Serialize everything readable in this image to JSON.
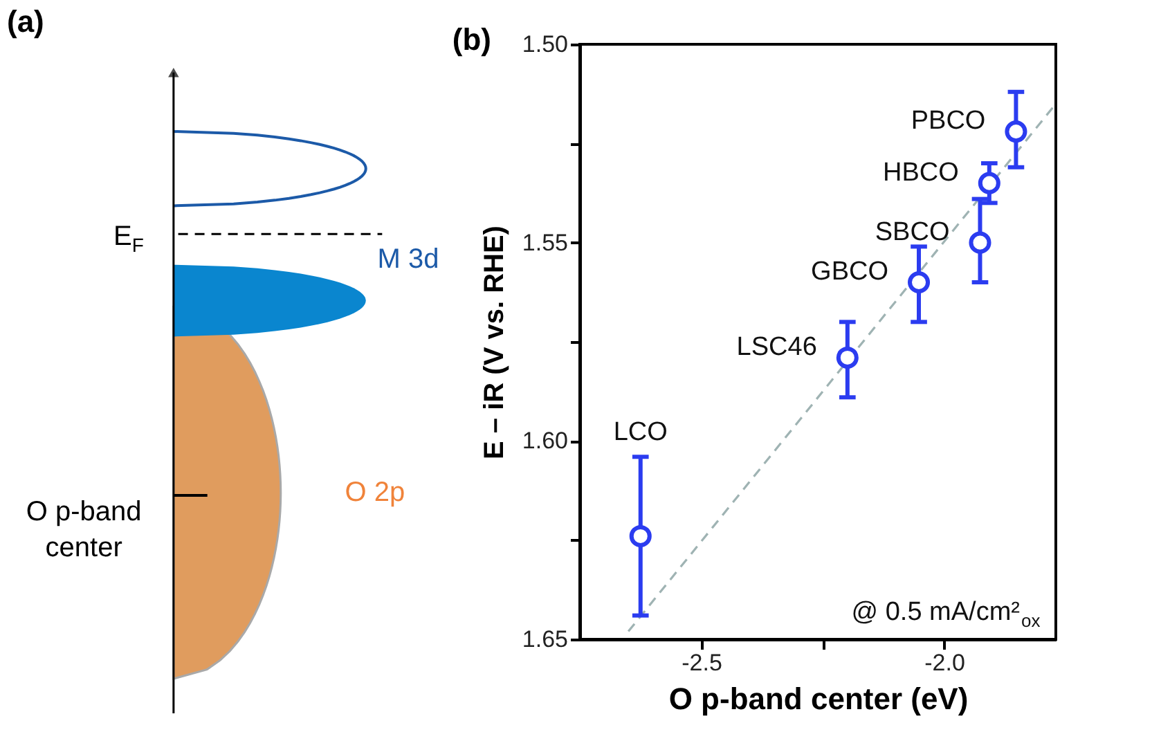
{
  "chart_data": [
    {
      "type": "other",
      "title": "(a)",
      "annotations": [
        "E$_{F}$",
        "M 3d",
        "O 2p",
        "O p-band center"
      ]
    },
    {
      "type": "scatter",
      "title": "(b)",
      "xlabel": "O p-band center (eV)",
      "ylabel": "E – iR (V vs. RHE)",
      "xlim": [
        -2.75,
        -1.77
      ],
      "ylim": [
        1.65,
        1.5
      ],
      "xticks": [
        -2.5,
        {
          "value": -2.25,
          "label": null
        },
        {
          "value": -2,
          "label": "-2.0"
        }
      ],
      "yticks": [
        {
          "value": 1.5,
          "label": "1.50"
        },
        {
          "value": 1.525,
          "label": null
        },
        1.55,
        {
          "value": 1.575,
          "label": null
        },
        {
          "value": 1.6,
          "label": "1.60"
        },
        {
          "value": 1.625,
          "label": null
        },
        1.65
      ],
      "grid": false,
      "marker": "circle",
      "series": [
        {
          "type": "line",
          "color": "#9fb3b3",
          "line_style": "dashed",
          "marker": "none",
          "x": [
            -2.65,
            -1.77
          ],
          "values": [
            1.648,
            1.515
          ]
        },
        {
          "type": "scatter",
          "color": "#2b3cf0",
          "x": [
            -2.625,
            -2.199,
            -2.052,
            -1.926,
            -1.907,
            -1.852
          ],
          "values": [
            1.624,
            1.579,
            1.56,
            1.55,
            1.535,
            1.522
          ],
          "errors": [
            [
              1.604,
              1.644
            ],
            [
              1.57,
              1.589
            ],
            [
              1.551,
              1.57
            ],
            [
              1.539,
              1.56
            ],
            [
              1.53,
              1.54
            ],
            [
              1.512,
              1.531
            ]
          ]
        }
      ],
      "annotations": [
        {
          "text": "LCO",
          "x": -2.625,
          "y": 1.604
        },
        {
          "text": "LSC46",
          "x": -2.199,
          "y": 1.579
        },
        {
          "text": "GBCO",
          "x": -2.052,
          "y": 1.56
        },
        {
          "text": "SBCO",
          "x": -1.926,
          "y": 1.55
        },
        {
          "text": "HBCO",
          "x": -1.907,
          "y": 1.535
        },
        {
          "text": "PBCO",
          "x": -1.852,
          "y": 1.522
        },
        "@ 0.5 mA/cm²$_{ox}$"
      ]
    }
  ]
}
